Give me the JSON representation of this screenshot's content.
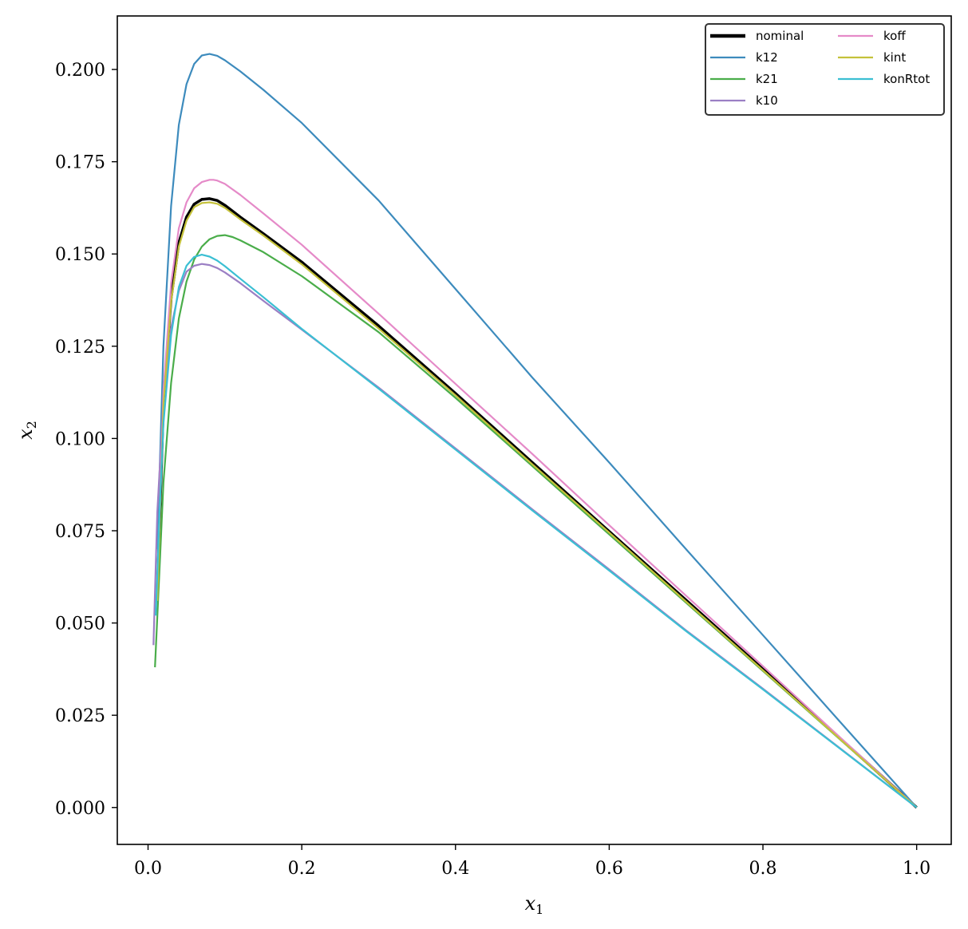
{
  "chart_data": {
    "type": "line",
    "title": "",
    "xlabel": "x",
    "xlabel_sub": "1",
    "ylabel": "x",
    "ylabel_sub": "2",
    "xlim": [
      -0.04,
      1.045
    ],
    "ylim": [
      -0.01,
      0.2145
    ],
    "grid": false,
    "legend_position": "top-right",
    "legend_columns": 2,
    "xticks": [
      0.0,
      0.2,
      0.4,
      0.6,
      0.8,
      1.0
    ],
    "xtick_labels": [
      "0.0",
      "0.2",
      "0.4",
      "0.6",
      "0.8",
      "1.0"
    ],
    "yticks": [
      0.0,
      0.025,
      0.05,
      0.075,
      0.1,
      0.125,
      0.15,
      0.175,
      0.2
    ],
    "ytick_labels": [
      "0.000",
      "0.025",
      "0.050",
      "0.075",
      "0.100",
      "0.125",
      "0.150",
      "0.175",
      "0.200"
    ],
    "series": [
      {
        "name": "nominal",
        "color": "#000000",
        "width": 3.5,
        "x": [
          0.012,
          0.02,
          0.03,
          0.04,
          0.05,
          0.06,
          0.07,
          0.08,
          0.09,
          0.1,
          0.12,
          0.15,
          0.2,
          0.3,
          0.4,
          0.5,
          0.6,
          0.7,
          0.8,
          0.9,
          1.0
        ],
        "y": [
          0.057,
          0.11,
          0.138,
          0.153,
          0.16,
          0.1635,
          0.1648,
          0.165,
          0.1645,
          0.1632,
          0.16,
          0.1555,
          0.1478,
          0.1305,
          0.1122,
          0.0935,
          0.0748,
          0.0562,
          0.0375,
          0.0188,
          0.0
        ]
      },
      {
        "name": "k12",
        "color": "#3d8bbd",
        "width": 2.2,
        "x": [
          0.012,
          0.02,
          0.03,
          0.04,
          0.05,
          0.06,
          0.07,
          0.08,
          0.09,
          0.1,
          0.12,
          0.15,
          0.2,
          0.3,
          0.4,
          0.5,
          0.6,
          0.7,
          0.8,
          0.9,
          1.0
        ],
        "y": [
          0.07,
          0.125,
          0.163,
          0.185,
          0.196,
          0.2015,
          0.2038,
          0.2042,
          0.2037,
          0.2025,
          0.1995,
          0.1945,
          0.1855,
          0.1645,
          0.1405,
          0.1165,
          0.0935,
          0.07,
          0.0467,
          0.0233,
          0.0
        ]
      },
      {
        "name": "k21",
        "color": "#4aad4a",
        "width": 2.2,
        "x": [
          0.009,
          0.015,
          0.02,
          0.03,
          0.04,
          0.05,
          0.06,
          0.07,
          0.08,
          0.09,
          0.1,
          0.11,
          0.12,
          0.15,
          0.2,
          0.3,
          0.4,
          0.5,
          0.6,
          0.7,
          0.8,
          0.9,
          1.0
        ],
        "y": [
          0.038,
          0.065,
          0.088,
          0.115,
          0.1325,
          0.1425,
          0.1485,
          0.152,
          0.154,
          0.1549,
          0.1551,
          0.1546,
          0.1537,
          0.1505,
          0.144,
          0.1288,
          0.111,
          0.0925,
          0.074,
          0.0555,
          0.037,
          0.0185,
          0.0
        ]
      },
      {
        "name": "k10",
        "color": "#9b7fc4",
        "width": 2.2,
        "x": [
          0.007,
          0.012,
          0.02,
          0.03,
          0.04,
          0.05,
          0.06,
          0.07,
          0.08,
          0.09,
          0.1,
          0.12,
          0.15,
          0.2,
          0.3,
          0.4,
          0.5,
          0.6,
          0.7,
          0.8,
          0.9,
          1.0
        ],
        "y": [
          0.044,
          0.08,
          0.11,
          0.13,
          0.14,
          0.1452,
          0.1468,
          0.1473,
          0.147,
          0.1462,
          0.145,
          0.1421,
          0.1373,
          0.1295,
          0.1138,
          0.0973,
          0.0808,
          0.0645,
          0.048,
          0.0322,
          0.0161,
          0.0
        ]
      },
      {
        "name": "koff",
        "color": "#e58ac8",
        "width": 2.2,
        "x": [
          0.012,
          0.02,
          0.03,
          0.04,
          0.05,
          0.06,
          0.07,
          0.08,
          0.085,
          0.09,
          0.1,
          0.12,
          0.15,
          0.2,
          0.3,
          0.4,
          0.5,
          0.6,
          0.7,
          0.8,
          0.9,
          1.0
        ],
        "y": [
          0.06,
          0.113,
          0.142,
          0.157,
          0.164,
          0.1678,
          0.1695,
          0.1701,
          0.1701,
          0.1699,
          0.169,
          0.166,
          0.161,
          0.1525,
          0.1338,
          0.1148,
          0.0958,
          0.0765,
          0.0574,
          0.0383,
          0.0191,
          0.0
        ]
      },
      {
        "name": "kint",
        "color": "#c4c13a",
        "width": 2.2,
        "x": [
          0.012,
          0.02,
          0.03,
          0.04,
          0.05,
          0.06,
          0.07,
          0.08,
          0.09,
          0.1,
          0.12,
          0.15,
          0.2,
          0.3,
          0.4,
          0.5,
          0.6,
          0.7,
          0.8,
          0.9,
          1.0
        ],
        "y": [
          0.056,
          0.109,
          0.137,
          0.152,
          0.159,
          0.1627,
          0.1638,
          0.164,
          0.1636,
          0.1625,
          0.1594,
          0.155,
          0.1472,
          0.1298,
          0.1117,
          0.093,
          0.0745,
          0.0558,
          0.0372,
          0.0186,
          0.0
        ]
      },
      {
        "name": "konRtot",
        "color": "#3bbfd3",
        "width": 2.2,
        "x": [
          0.01,
          0.015,
          0.02,
          0.03,
          0.04,
          0.05,
          0.06,
          0.07,
          0.08,
          0.09,
          0.1,
          0.12,
          0.15,
          0.2,
          0.3,
          0.4,
          0.5,
          0.6,
          0.7,
          0.8,
          0.9,
          1.0
        ],
        "y": [
          0.052,
          0.08,
          0.104,
          0.128,
          0.141,
          0.1468,
          0.1492,
          0.1498,
          0.1493,
          0.1482,
          0.1467,
          0.1433,
          0.1383,
          0.1297,
          0.1135,
          0.097,
          0.0805,
          0.0642,
          0.0478,
          0.032,
          0.016,
          0.0
        ]
      }
    ]
  }
}
